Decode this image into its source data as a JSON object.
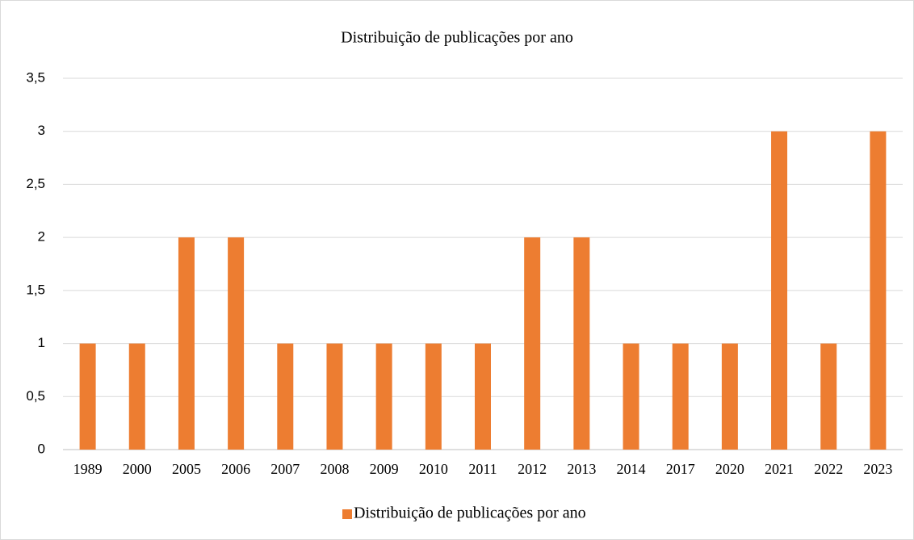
{
  "chart_data": {
    "type": "bar",
    "title": "Distribuição de publicações por ano",
    "categories": [
      "1989",
      "2000",
      "2005",
      "2006",
      "2007",
      "2008",
      "2009",
      "2010",
      "2011",
      "2012",
      "2013",
      "2014",
      "2017",
      "2020",
      "2021",
      "2022",
      "2023"
    ],
    "series": [
      {
        "name": "Distribuição de publicações por ano",
        "color": "#ed7d31",
        "values": [
          1,
          1,
          2,
          2,
          1,
          1,
          1,
          1,
          1,
          2,
          2,
          1,
          1,
          1,
          3,
          1,
          3
        ]
      }
    ],
    "ylim": [
      0,
      3.5
    ],
    "yticks": [
      0,
      {
        "value": 0.5,
        "label": "0,5"
      },
      1,
      {
        "value": 1.5,
        "label": "1,5"
      },
      2,
      {
        "value": 2.5,
        "label": "2,5"
      },
      3,
      {
        "value": 3.5,
        "label": "3,5"
      }
    ],
    "grid": true,
    "legend": "bottom"
  }
}
